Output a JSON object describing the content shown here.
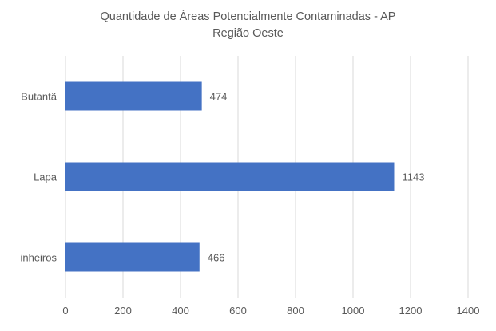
{
  "chart_data": {
    "type": "bar",
    "orientation": "horizontal",
    "title": "Quantidade de Áreas Potencialmente Contaminadas - AP",
    "subtitle": "Região Oeste",
    "categories": [
      "Butantã",
      "Lapa",
      "inheiros"
    ],
    "values": [
      474,
      1143,
      466
    ],
    "data_labels": [
      "474",
      "1143",
      "466"
    ],
    "xlim": [
      0,
      1400
    ],
    "x_ticks": [
      0,
      200,
      400,
      600,
      800,
      1000,
      1200,
      1400
    ],
    "x_tick_labels": [
      "0",
      "200",
      "400",
      "600",
      "800",
      "1000",
      "1200",
      "1400"
    ],
    "grid": "vertical",
    "legend": "none",
    "bar_color": "#4472C4",
    "grid_color": "#D9D9D9",
    "text_color": "#595959"
  }
}
